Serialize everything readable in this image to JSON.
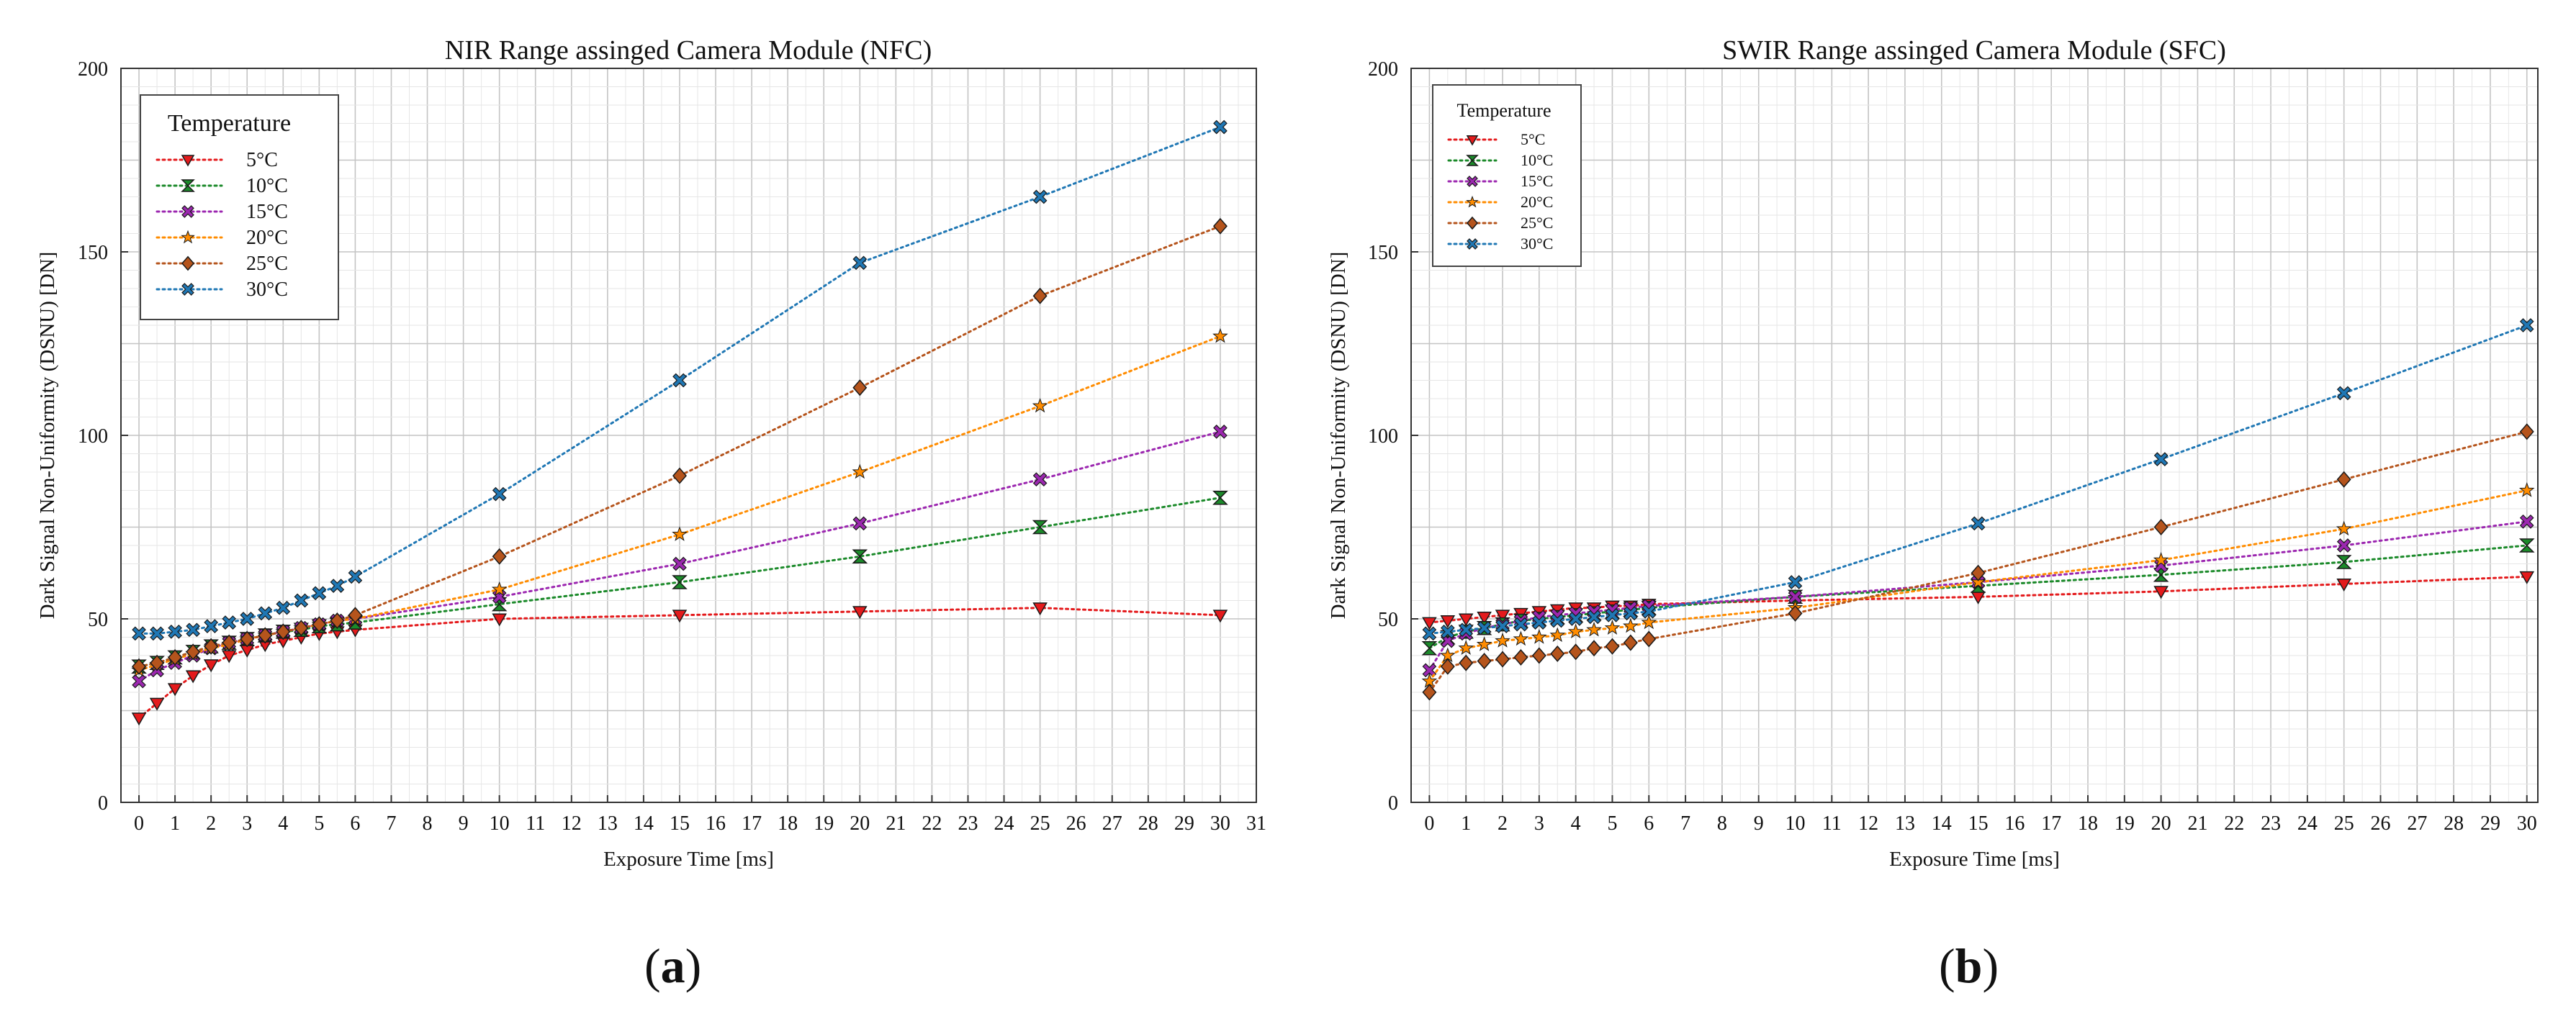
{
  "chart_data": [
    {
      "type": "line",
      "title": "NIR Range assinged Camera Module (NFC)",
      "xlabel": "Exposure Time [ms]",
      "ylabel": "Dark Signal Non-Uniformity (DSNU) [DN]",
      "xlim": [
        -0.5,
        31
      ],
      "ylim": [
        0,
        200
      ],
      "xticks": [
        0,
        1,
        2,
        3,
        4,
        5,
        6,
        7,
        8,
        9,
        10,
        11,
        12,
        13,
        14,
        15,
        16,
        17,
        18,
        19,
        20,
        21,
        22,
        23,
        24,
        25,
        26,
        27,
        28,
        29,
        30,
        31
      ],
      "yticks": [
        0,
        50,
        100,
        150,
        200
      ],
      "legend_title": "Temperature",
      "caption": "a",
      "x": [
        0,
        0.5,
        1,
        1.5,
        2,
        2.5,
        3,
        3.5,
        4,
        4.5,
        5,
        5.5,
        6,
        10,
        15,
        20,
        25,
        30
      ],
      "series": [
        {
          "name": "5°C",
          "color": "#e41a1c",
          "marker": "tri",
          "values": [
            23,
            27,
            31,
            34.5,
            37.5,
            40,
            41.5,
            43,
            44,
            45,
            46,
            46.5,
            47,
            50,
            51,
            52,
            53,
            51
          ]
        },
        {
          "name": "10°C",
          "color": "#1b8a2a",
          "marker": "hour",
          "values": [
            37,
            38,
            39.5,
            41,
            42.5,
            43.5,
            44.5,
            45.5,
            46.5,
            47,
            48,
            48.5,
            49,
            54,
            60,
            67,
            75,
            83
          ]
        },
        {
          "name": "15°C",
          "color": "#9c27b0",
          "marker": "x",
          "values": [
            33,
            36,
            38,
            40,
            42,
            43.5,
            44.5,
            45.5,
            46.5,
            47.5,
            48.5,
            49.5,
            50,
            56,
            65,
            76,
            88,
            101
          ]
        },
        {
          "name": "20°C",
          "color": "#ff8c00",
          "marker": "star",
          "values": [
            36,
            37.5,
            39,
            40.5,
            42,
            43,
            44.5,
            45.5,
            46.5,
            47.5,
            48.5,
            49.5,
            50,
            58,
            73,
            90,
            108,
            127
          ]
        },
        {
          "name": "25°C",
          "color": "#b5541c",
          "marker": "diamond",
          "values": [
            37,
            38,
            39.5,
            41,
            42.5,
            43.5,
            44.5,
            45.5,
            46.5,
            47.5,
            48.5,
            49.5,
            51,
            67,
            89,
            113,
            138,
            157
          ]
        },
        {
          "name": "30°C",
          "color": "#1f77b4",
          "marker": "x",
          "values": [
            46,
            46,
            46.5,
            47,
            48,
            49,
            50,
            51.5,
            53,
            55,
            57,
            59,
            61.5,
            84,
            115,
            147,
            165,
            184
          ]
        }
      ]
    },
    {
      "type": "line",
      "title": "SWIR Range assinged Camera Module (SFC)",
      "xlabel": "Exposure Time [ms]",
      "ylabel": "Dark Signal Non-Uniformity (DSNU) [DN]",
      "xlim": [
        -0.5,
        30.3
      ],
      "ylim": [
        0,
        200
      ],
      "xticks": [
        0,
        1,
        2,
        3,
        4,
        5,
        6,
        7,
        8,
        9,
        10,
        11,
        12,
        13,
        14,
        15,
        16,
        17,
        18,
        19,
        20,
        21,
        22,
        23,
        24,
        25,
        26,
        27,
        28,
        29,
        30
      ],
      "yticks": [
        0,
        50,
        100,
        150,
        200
      ],
      "legend_title": "Temperature",
      "caption": "b",
      "x": [
        0,
        0.5,
        1,
        1.5,
        2,
        2.5,
        3,
        3.5,
        4,
        4.5,
        5,
        5.5,
        6,
        10,
        15,
        20,
        25,
        30
      ],
      "series": [
        {
          "name": "5°C",
          "color": "#e41a1c",
          "marker": "tri",
          "values": [
            49,
            49.5,
            50,
            50.5,
            51,
            51.5,
            52,
            52.5,
            53,
            53,
            53.5,
            53.5,
            54,
            55,
            56,
            57.5,
            59.5,
            61.5
          ]
        },
        {
          "name": "10°C",
          "color": "#1b8a2a",
          "marker": "hour",
          "values": [
            42,
            45,
            46.5,
            47.5,
            48.5,
            49.5,
            50,
            50.5,
            51,
            51.5,
            52,
            52.5,
            53,
            56,
            59,
            62,
            65.5,
            70
          ]
        },
        {
          "name": "15°C",
          "color": "#9c27b0",
          "marker": "x",
          "values": [
            36,
            44,
            46,
            47.5,
            48.5,
            49.5,
            50.5,
            51,
            51.5,
            52,
            52.5,
            53,
            53.5,
            56,
            60,
            64.5,
            70,
            76.5
          ]
        },
        {
          "name": "20°C",
          "color": "#ff8c00",
          "marker": "star",
          "values": [
            33,
            40,
            42,
            43,
            44,
            44.5,
            45,
            45.5,
            46.5,
            47,
            47.5,
            48,
            49,
            53,
            60,
            66,
            74.5,
            85
          ]
        },
        {
          "name": "25°C",
          "color": "#b5541c",
          "marker": "diamond",
          "values": [
            30,
            37,
            38,
            38.5,
            39,
            39.5,
            40,
            40.5,
            41,
            42,
            42.5,
            43.5,
            44.5,
            51.5,
            62.5,
            75,
            88,
            101
          ]
        },
        {
          "name": "30°C",
          "color": "#1f77b4",
          "marker": "x",
          "values": [
            46,
            46.5,
            47,
            47.5,
            48,
            48.5,
            49,
            49.5,
            50,
            50.5,
            51,
            51.5,
            52,
            60,
            76,
            93.5,
            111.5,
            130
          ]
        }
      ]
    }
  ]
}
